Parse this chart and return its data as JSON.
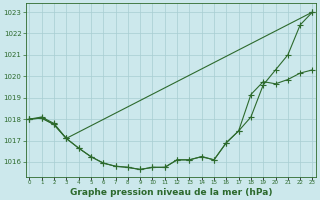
{
  "title": "Graphe pression niveau de la mer (hPa)",
  "hours": [
    0,
    1,
    2,
    3,
    4,
    5,
    6,
    7,
    8,
    9,
    10,
    11,
    12,
    13,
    14,
    15,
    16,
    17,
    18,
    19,
    20,
    21,
    22,
    23
  ],
  "line1": [
    1018.0,
    1018.1,
    1017.8,
    1017.1,
    null,
    null,
    null,
    null,
    null,
    null,
    null,
    null,
    null,
    null,
    null,
    null,
    null,
    null,
    null,
    null,
    null,
    null,
    null,
    1023.0
  ],
  "line2": [
    1018.0,
    1018.1,
    1017.8,
    1017.1,
    1016.8,
    1016.4,
    1016.1,
    1015.95,
    1015.85,
    1015.75,
    1015.8,
    1015.8,
    1016.15,
    1016.15,
    1016.3,
    1016.2,
    1017.0,
    1017.6,
    1018.1,
    1019.6,
    1020.3,
    1021.0,
    1022.4,
    1023.0
  ],
  "line3": [
    1018.0,
    1018.05,
    1017.75,
    1017.1,
    1016.65,
    1016.25,
    1015.95,
    1015.8,
    1015.75,
    1015.65,
    1015.75,
    1015.75,
    1016.1,
    1016.1,
    1016.25,
    1016.1,
    1016.9,
    1017.45,
    1019.15,
    1019.75,
    1019.65,
    1019.85,
    1020.3,
    1020.3
  ],
  "line_color": "#2d6a2d",
  "bg_color": "#cce8ec",
  "grid_color": "#a8cdd2",
  "ylim_min": 1015.3,
  "ylim_max": 1023.4,
  "yticks": [
    1016,
    1017,
    1018,
    1019,
    1020,
    1021,
    1022,
    1023
  ],
  "title_color": "#2d6a2d",
  "title_fontsize": 6.5,
  "marker": "+",
  "marker_size": 4.0,
  "lw": 0.8
}
